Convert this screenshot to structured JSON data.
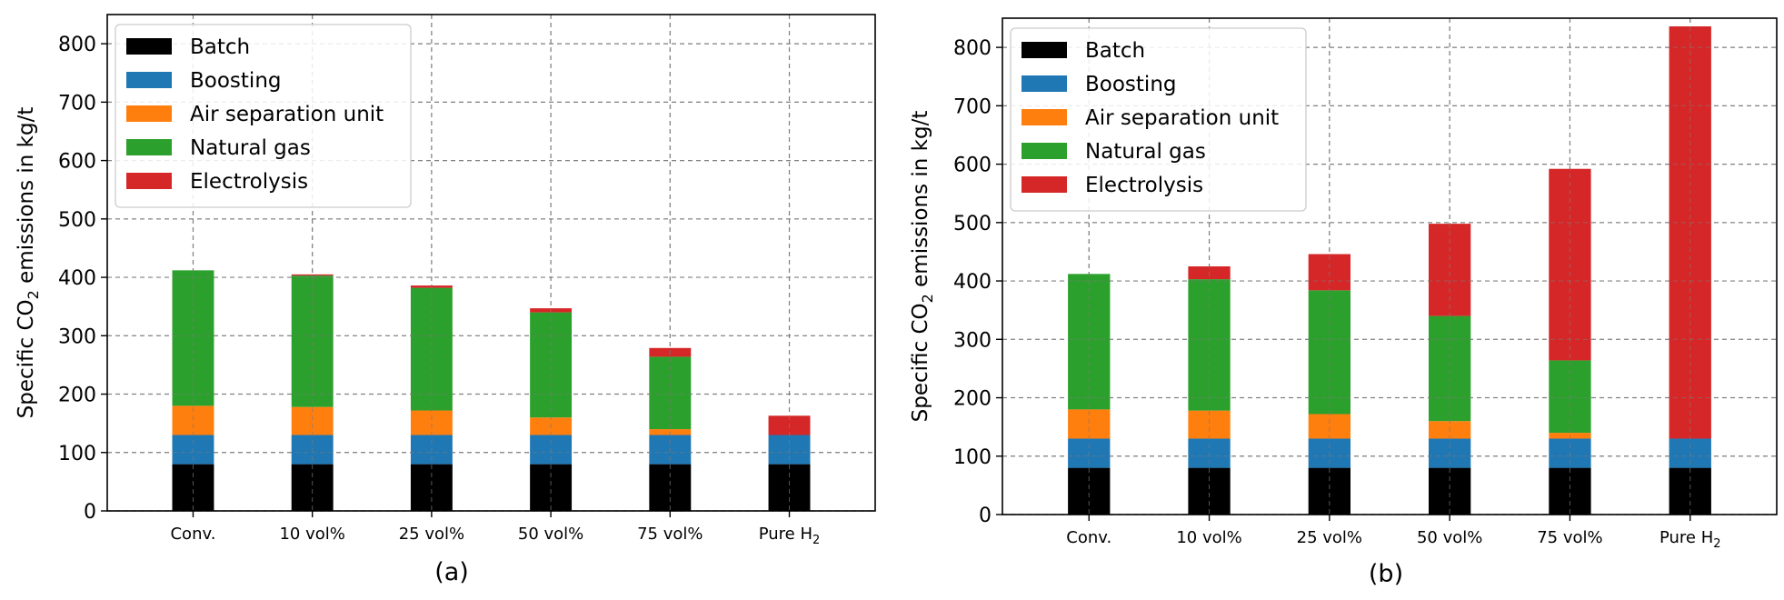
{
  "chart_data": [
    {
      "panel": "a",
      "type": "bar",
      "stacked": true,
      "caption": "(a)",
      "ylabel_prefix": "Specific CO",
      "ylabel_sub": "2",
      "ylabel_suffix": " emissions in kg/t",
      "categories": [
        "Conv.",
        "10 vol%",
        "25 vol%",
        "50 vol%",
        "75 vol%",
        "Pure H"
      ],
      "category_subscripts": [
        "",
        "",
        "",
        "",
        "",
        "2"
      ],
      "ylim": [
        0,
        850
      ],
      "yticks": [
        0,
        100,
        200,
        300,
        400,
        500,
        600,
        700,
        800
      ],
      "grid": true,
      "legend_position": "upper-left",
      "series": [
        {
          "name": "Batch",
          "color": "#000000",
          "values": [
            80,
            80,
            80,
            80,
            80,
            80
          ]
        },
        {
          "name": "Boosting",
          "color": "#1f77b4",
          "values": [
            50,
            50,
            50,
            50,
            50,
            50
          ]
        },
        {
          "name": "Air separation unit",
          "color": "#ff7f0e",
          "values": [
            50,
            48,
            42,
            30,
            10,
            0
          ]
        },
        {
          "name": "Natural gas",
          "color": "#2ca02c",
          "values": [
            232,
            225,
            210,
            180,
            124,
            0
          ]
        },
        {
          "name": "Electrolysis",
          "color": "#d62728",
          "values": [
            0,
            2,
            4,
            7,
            15,
            33
          ]
        }
      ]
    },
    {
      "panel": "b",
      "type": "bar",
      "stacked": true,
      "caption": "(b)",
      "ylabel_prefix": "Specific CO",
      "ylabel_sub": "2",
      "ylabel_suffix": " emissions in kg/t",
      "categories": [
        "Conv.",
        "10 vol%",
        "25 vol%",
        "50 vol%",
        "75 vol%",
        "Pure H"
      ],
      "category_subscripts": [
        "",
        "",
        "",
        "",
        "",
        "2"
      ],
      "ylim": [
        0,
        850
      ],
      "yticks": [
        0,
        100,
        200,
        300,
        400,
        500,
        600,
        700,
        800
      ],
      "grid": true,
      "legend_position": "upper-left",
      "series": [
        {
          "name": "Batch",
          "color": "#000000",
          "values": [
            80,
            80,
            80,
            80,
            80,
            80
          ]
        },
        {
          "name": "Boosting",
          "color": "#1f77b4",
          "values": [
            50,
            50,
            50,
            50,
            50,
            50
          ]
        },
        {
          "name": "Air separation unit",
          "color": "#ff7f0e",
          "values": [
            50,
            48,
            42,
            30,
            10,
            0
          ]
        },
        {
          "name": "Natural gas",
          "color": "#2ca02c",
          "values": [
            232,
            225,
            212,
            180,
            124,
            0
          ]
        },
        {
          "name": "Electrolysis",
          "color": "#d62728",
          "values": [
            0,
            22,
            62,
            158,
            328,
            706
          ]
        }
      ]
    }
  ]
}
